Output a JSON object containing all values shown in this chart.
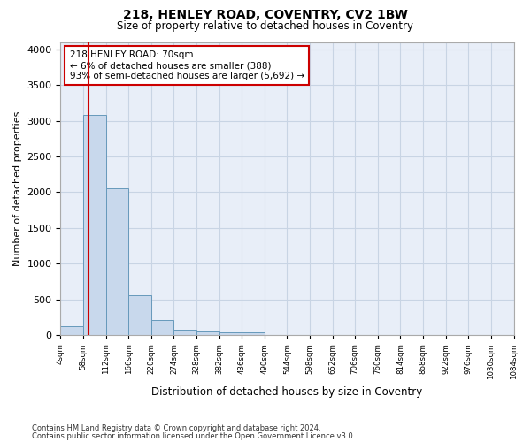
{
  "title": "218, HENLEY ROAD, COVENTRY, CV2 1BW",
  "subtitle": "Size of property relative to detached houses in Coventry",
  "xlabel": "Distribution of detached houses by size in Coventry",
  "ylabel": "Number of detached properties",
  "bin_edges": [
    4,
    58,
    112,
    166,
    220,
    274,
    328,
    382,
    436,
    490,
    544,
    598,
    652,
    706,
    760,
    814,
    868,
    922,
    976,
    1030,
    1084
  ],
  "bar_heights": [
    130,
    3080,
    2060,
    560,
    210,
    80,
    55,
    45,
    40,
    0,
    0,
    0,
    0,
    0,
    0,
    0,
    0,
    0,
    0,
    0
  ],
  "bar_color": "#c8d8ec",
  "bar_edge_color": "#6699bb",
  "property_size": 70,
  "vline_color": "#cc0000",
  "annotation_text": "218 HENLEY ROAD: 70sqm\n← 6% of detached houses are smaller (388)\n93% of semi-detached houses are larger (5,692) →",
  "annotation_box_color": "white",
  "annotation_box_edge": "#cc0000",
  "ylim": [
    0,
    4100
  ],
  "yticks": [
    0,
    500,
    1000,
    1500,
    2000,
    2500,
    3000,
    3500,
    4000
  ],
  "tick_labels": [
    "4sqm",
    "58sqm",
    "112sqm",
    "166sqm",
    "220sqm",
    "274sqm",
    "328sqm",
    "382sqm",
    "436sqm",
    "490sqm",
    "544sqm",
    "598sqm",
    "652sqm",
    "706sqm",
    "760sqm",
    "814sqm",
    "868sqm",
    "922sqm",
    "976sqm",
    "1030sqm",
    "1084sqm"
  ],
  "grid_color": "#c8d4e4",
  "footnote1": "Contains HM Land Registry data © Crown copyright and database right 2024.",
  "footnote2": "Contains public sector information licensed under the Open Government Licence v3.0.",
  "bg_color": "#ffffff",
  "plot_bg_color": "#e8eef8"
}
